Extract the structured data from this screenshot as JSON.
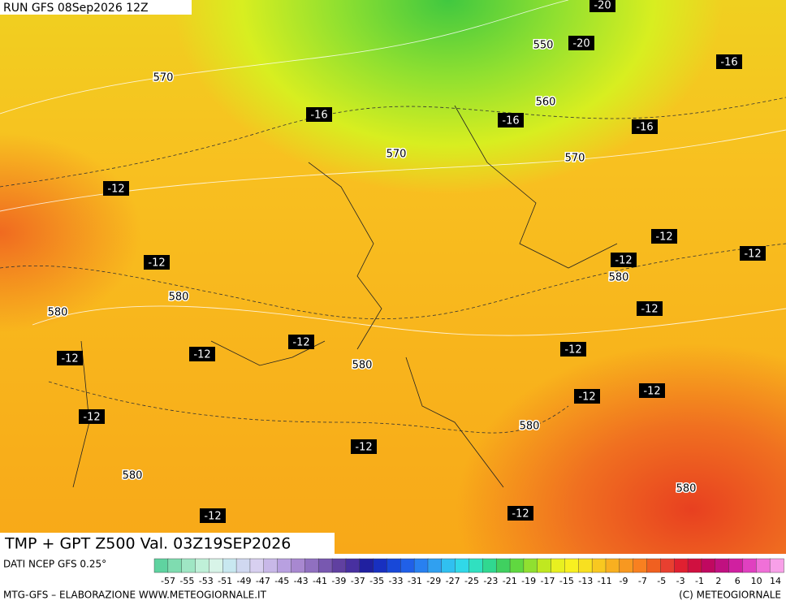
{
  "header": {
    "run": "RUN GFS 08Sep2026 12Z"
  },
  "map": {
    "title": "TMP + GPT Z500 Val. 03Z19SEP2026",
    "height_labels": [
      "570",
      "550",
      "560",
      "570",
      "570",
      "580",
      "580",
      "580",
      "580",
      "580",
      "580",
      "580"
    ],
    "temperature_labels": [
      "-20",
      "-20",
      "-16",
      "-16",
      "-16",
      "-16",
      "-12",
      "-12",
      "-12",
      "-12",
      "-12",
      "-12",
      "-12",
      "-12",
      "-12",
      "-12",
      "-12",
      "-12",
      "-12",
      "-12",
      "-12",
      "-12"
    ]
  },
  "footer": {
    "source": "DATI NCEP GFS 0.25°",
    "credit": "MTG-GFS – ELABORAZIONE WWW.METEOGIORNALE.IT",
    "copyright": "(C) METEOGIORNALE"
  },
  "scale": {
    "labels": [
      "-57",
      "-55",
      "-53",
      "-51",
      "-49",
      "-47",
      "-45",
      "-43",
      "-41",
      "-39",
      "-37",
      "-35",
      "-33",
      "-31",
      "-29",
      "-27",
      "-25",
      "-23",
      "-21",
      "-19",
      "-17",
      "-15",
      "-13",
      "-11",
      "-9",
      "-7",
      "-5",
      "-3",
      "-1",
      "2",
      "6",
      "10",
      "14"
    ],
    "colors": [
      "#5fd3a0",
      "#7fdcb0",
      "#9fe6c4",
      "#bff0d8",
      "#d8f4e8",
      "#c8e8f0",
      "#d0d8f0",
      "#d8d0f0",
      "#c8b8e8",
      "#b8a0e0",
      "#a888d0",
      "#9070c0",
      "#7858b0",
      "#6040a0",
      "#4830a0",
      "#2020a0",
      "#1830c0",
      "#1848d8",
      "#2060e8",
      "#2880f0",
      "#30a0f0",
      "#30c0f0",
      "#30d8e8",
      "#30e0c0",
      "#30d890",
      "#40d060",
      "#60d840",
      "#90e030",
      "#c0e820",
      "#e8f020",
      "#f8f020",
      "#f8e020",
      "#f8c820",
      "#f8b020",
      "#f89820",
      "#f88020",
      "#f06020",
      "#e84030",
      "#e02030",
      "#d01040",
      "#c00860",
      "#c01080",
      "#d020a0",
      "#e040c0",
      "#f070d8",
      "#f8a0e8"
    ]
  }
}
